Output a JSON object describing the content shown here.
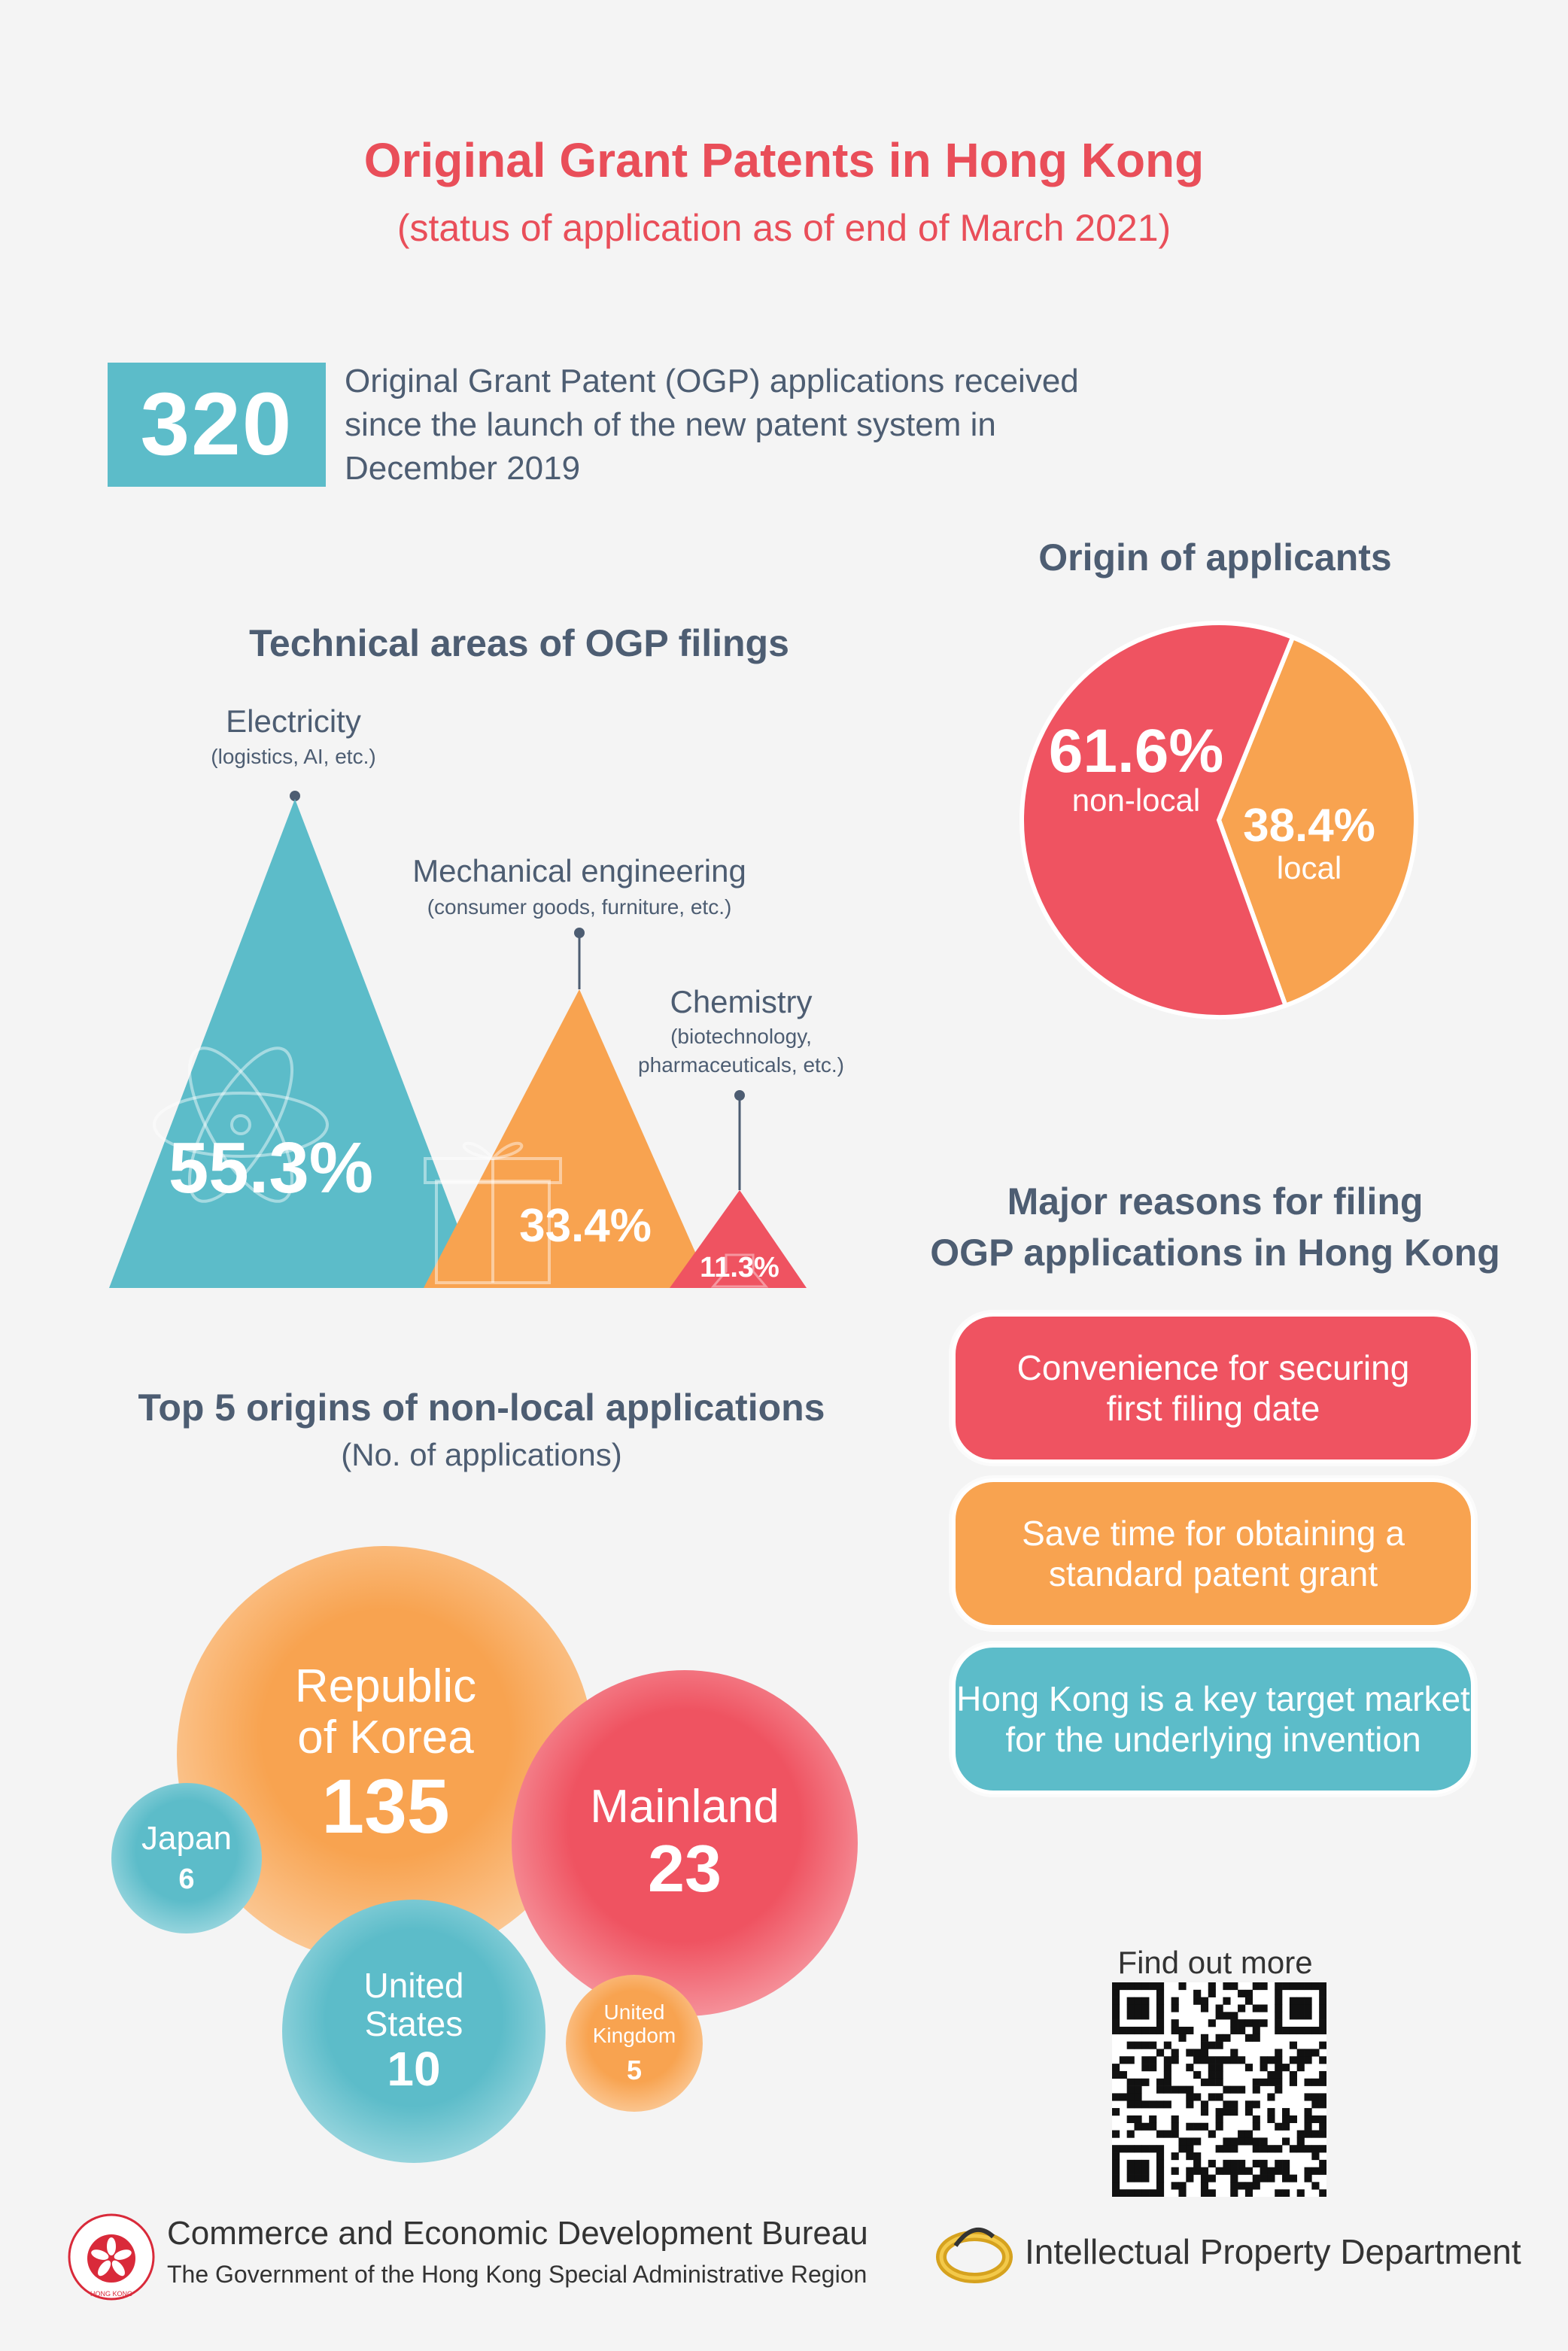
{
  "header": {
    "title": "Original Grant Patents in Hong Kong",
    "subtitle": "(status of application as of end of March 2021)"
  },
  "stat": {
    "value": "320",
    "text": "Original Grant Patent (OGP) applications received since the launch of the new patent system in December 2019"
  },
  "technical": {
    "title": "Technical areas of OGP filings",
    "items": [
      {
        "name": "Electricity",
        "sub": "(logistics, AI, etc.)",
        "percent": "55.3%",
        "color": "#5cbcc9",
        "icon": "atom-icon"
      },
      {
        "name": "Mechanical engineering",
        "sub": "(consumer goods, furniture, etc.)",
        "percent": "33.4%",
        "color": "#f8a350",
        "icon": "gift-icon"
      },
      {
        "name": "Chemistry",
        "sub_line1": "(biotechnology,",
        "sub_line2": "pharmaceuticals, etc.)",
        "percent": "11.3%",
        "color": "#ef5361",
        "icon": "flask-icon"
      }
    ]
  },
  "origin": {
    "title": "Origin of applicants",
    "nonlocal_label": "non-local",
    "local_label": "local"
  },
  "nonlocal_top5": {
    "title": "Top 5 origins of non-local applications",
    "subtitle": "(No. of applications)",
    "korea_line1": "Republic",
    "korea_line2": "of Korea",
    "mainland": "Mainland",
    "japan": "Japan",
    "us_line1": "United",
    "us_line2": "States",
    "uk_line1": "United",
    "uk_line2": "Kingdom"
  },
  "reasons": {
    "title_line1": "Major reasons for filing",
    "title_line2": "OGP applications in Hong Kong",
    "items": [
      {
        "line1": "Convenience for securing",
        "line2": "first filing date",
        "color": "#ef5361"
      },
      {
        "line1": "Save time for obtaining a",
        "line2": "standard patent grant",
        "color": "#f8a350"
      },
      {
        "line1": "Hong Kong is a key target market",
        "line2": "for the underlying invention",
        "color": "#5cbcc9"
      }
    ]
  },
  "find_more": "Find out more",
  "footer": {
    "bureau_line1": "Commerce and Economic Development Bureau",
    "bureau_line2": "The Government of the Hong Kong Special Administrative Region",
    "department": "Intellectual Property Department",
    "emblem_text": "HONG KONG"
  },
  "chart_data": [
    {
      "type": "bar",
      "title": "Technical areas of OGP filings",
      "categories": [
        "Electricity",
        "Mechanical engineering",
        "Chemistry"
      ],
      "values": [
        55.3,
        33.4,
        11.3
      ],
      "unit": "%"
    },
    {
      "type": "pie",
      "title": "Origin of applicants",
      "labels": [
        "non-local",
        "local"
      ],
      "values": [
        61.6,
        38.4
      ],
      "colors": [
        "#ef5361",
        "#f8a350"
      ]
    },
    {
      "type": "bar",
      "title": "Top 5 origins of non-local applications",
      "ylabel": "(No. of applications)",
      "categories": [
        "Republic of Korea",
        "Mainland",
        "Japan",
        "United States",
        "United Kingdom"
      ],
      "values": [
        135,
        23,
        6,
        10,
        5
      ]
    }
  ]
}
